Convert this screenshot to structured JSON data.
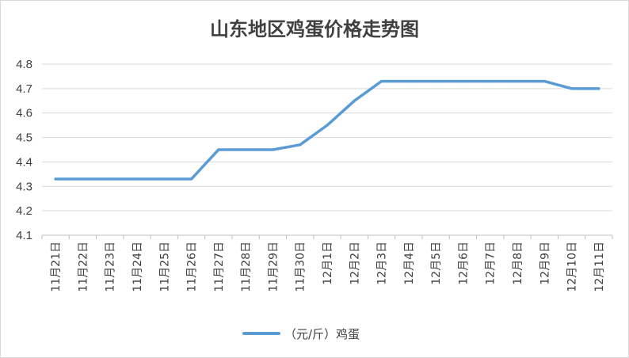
{
  "chart_data": {
    "type": "line",
    "title": "山东地区鸡蛋价格走势图",
    "categories": [
      "11月21日",
      "11月22日",
      "11月23日",
      "11月24日",
      "11月25日",
      "11月26日",
      "11月27日",
      "11月28日",
      "11月29日",
      "11月30日",
      "12月1日",
      "12月2日",
      "12月3日",
      "12月4日",
      "12月5日",
      "12月6日",
      "12月7日",
      "12月8日",
      "12月9日",
      "12月10日",
      "12月11日"
    ],
    "series": [
      {
        "name": "（元/斤）鸡蛋",
        "color": "#5b9bd5",
        "values": [
          4.33,
          4.33,
          4.33,
          4.33,
          4.33,
          4.33,
          4.45,
          4.45,
          4.45,
          4.47,
          4.55,
          4.65,
          4.73,
          4.73,
          4.73,
          4.73,
          4.73,
          4.73,
          4.73,
          4.7,
          4.7
        ]
      }
    ],
    "ylim": [
      4.1,
      4.8
    ],
    "yticks": [
      "4.1",
      "4.2",
      "4.3",
      "4.4",
      "4.5",
      "4.6",
      "4.7",
      "4.8"
    ],
    "xlabel": "",
    "ylabel": "",
    "grid": true,
    "legend": "bottom"
  }
}
